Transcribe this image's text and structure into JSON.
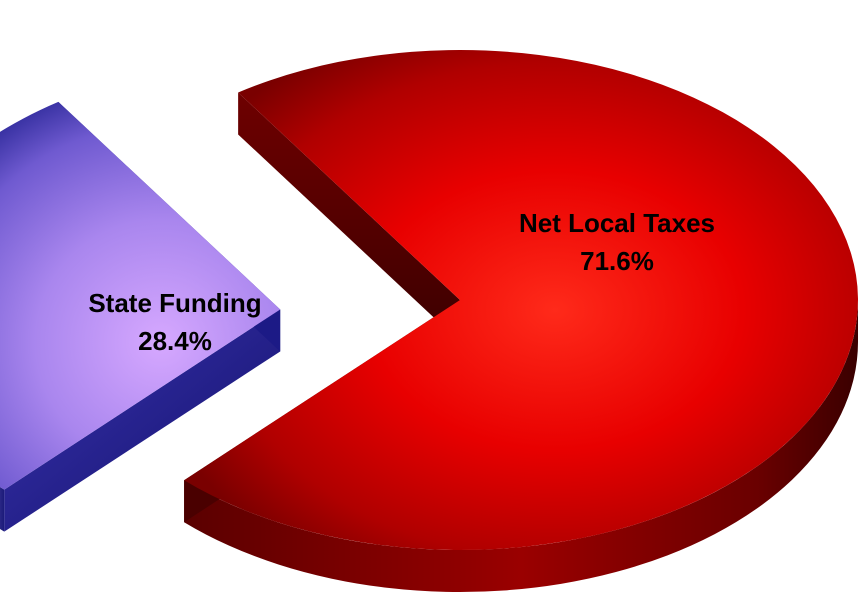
{
  "chart_data": {
    "type": "pie",
    "style": "3d-exploded",
    "slices": [
      {
        "name": "Net Local Taxes",
        "value": 71.6,
        "label": "71.6%",
        "color": "#e00000",
        "exploded": false
      },
      {
        "name": "State Funding",
        "value": 28.4,
        "label": "28.4%",
        "color": "#8f6fe6",
        "exploded": true
      }
    ]
  }
}
